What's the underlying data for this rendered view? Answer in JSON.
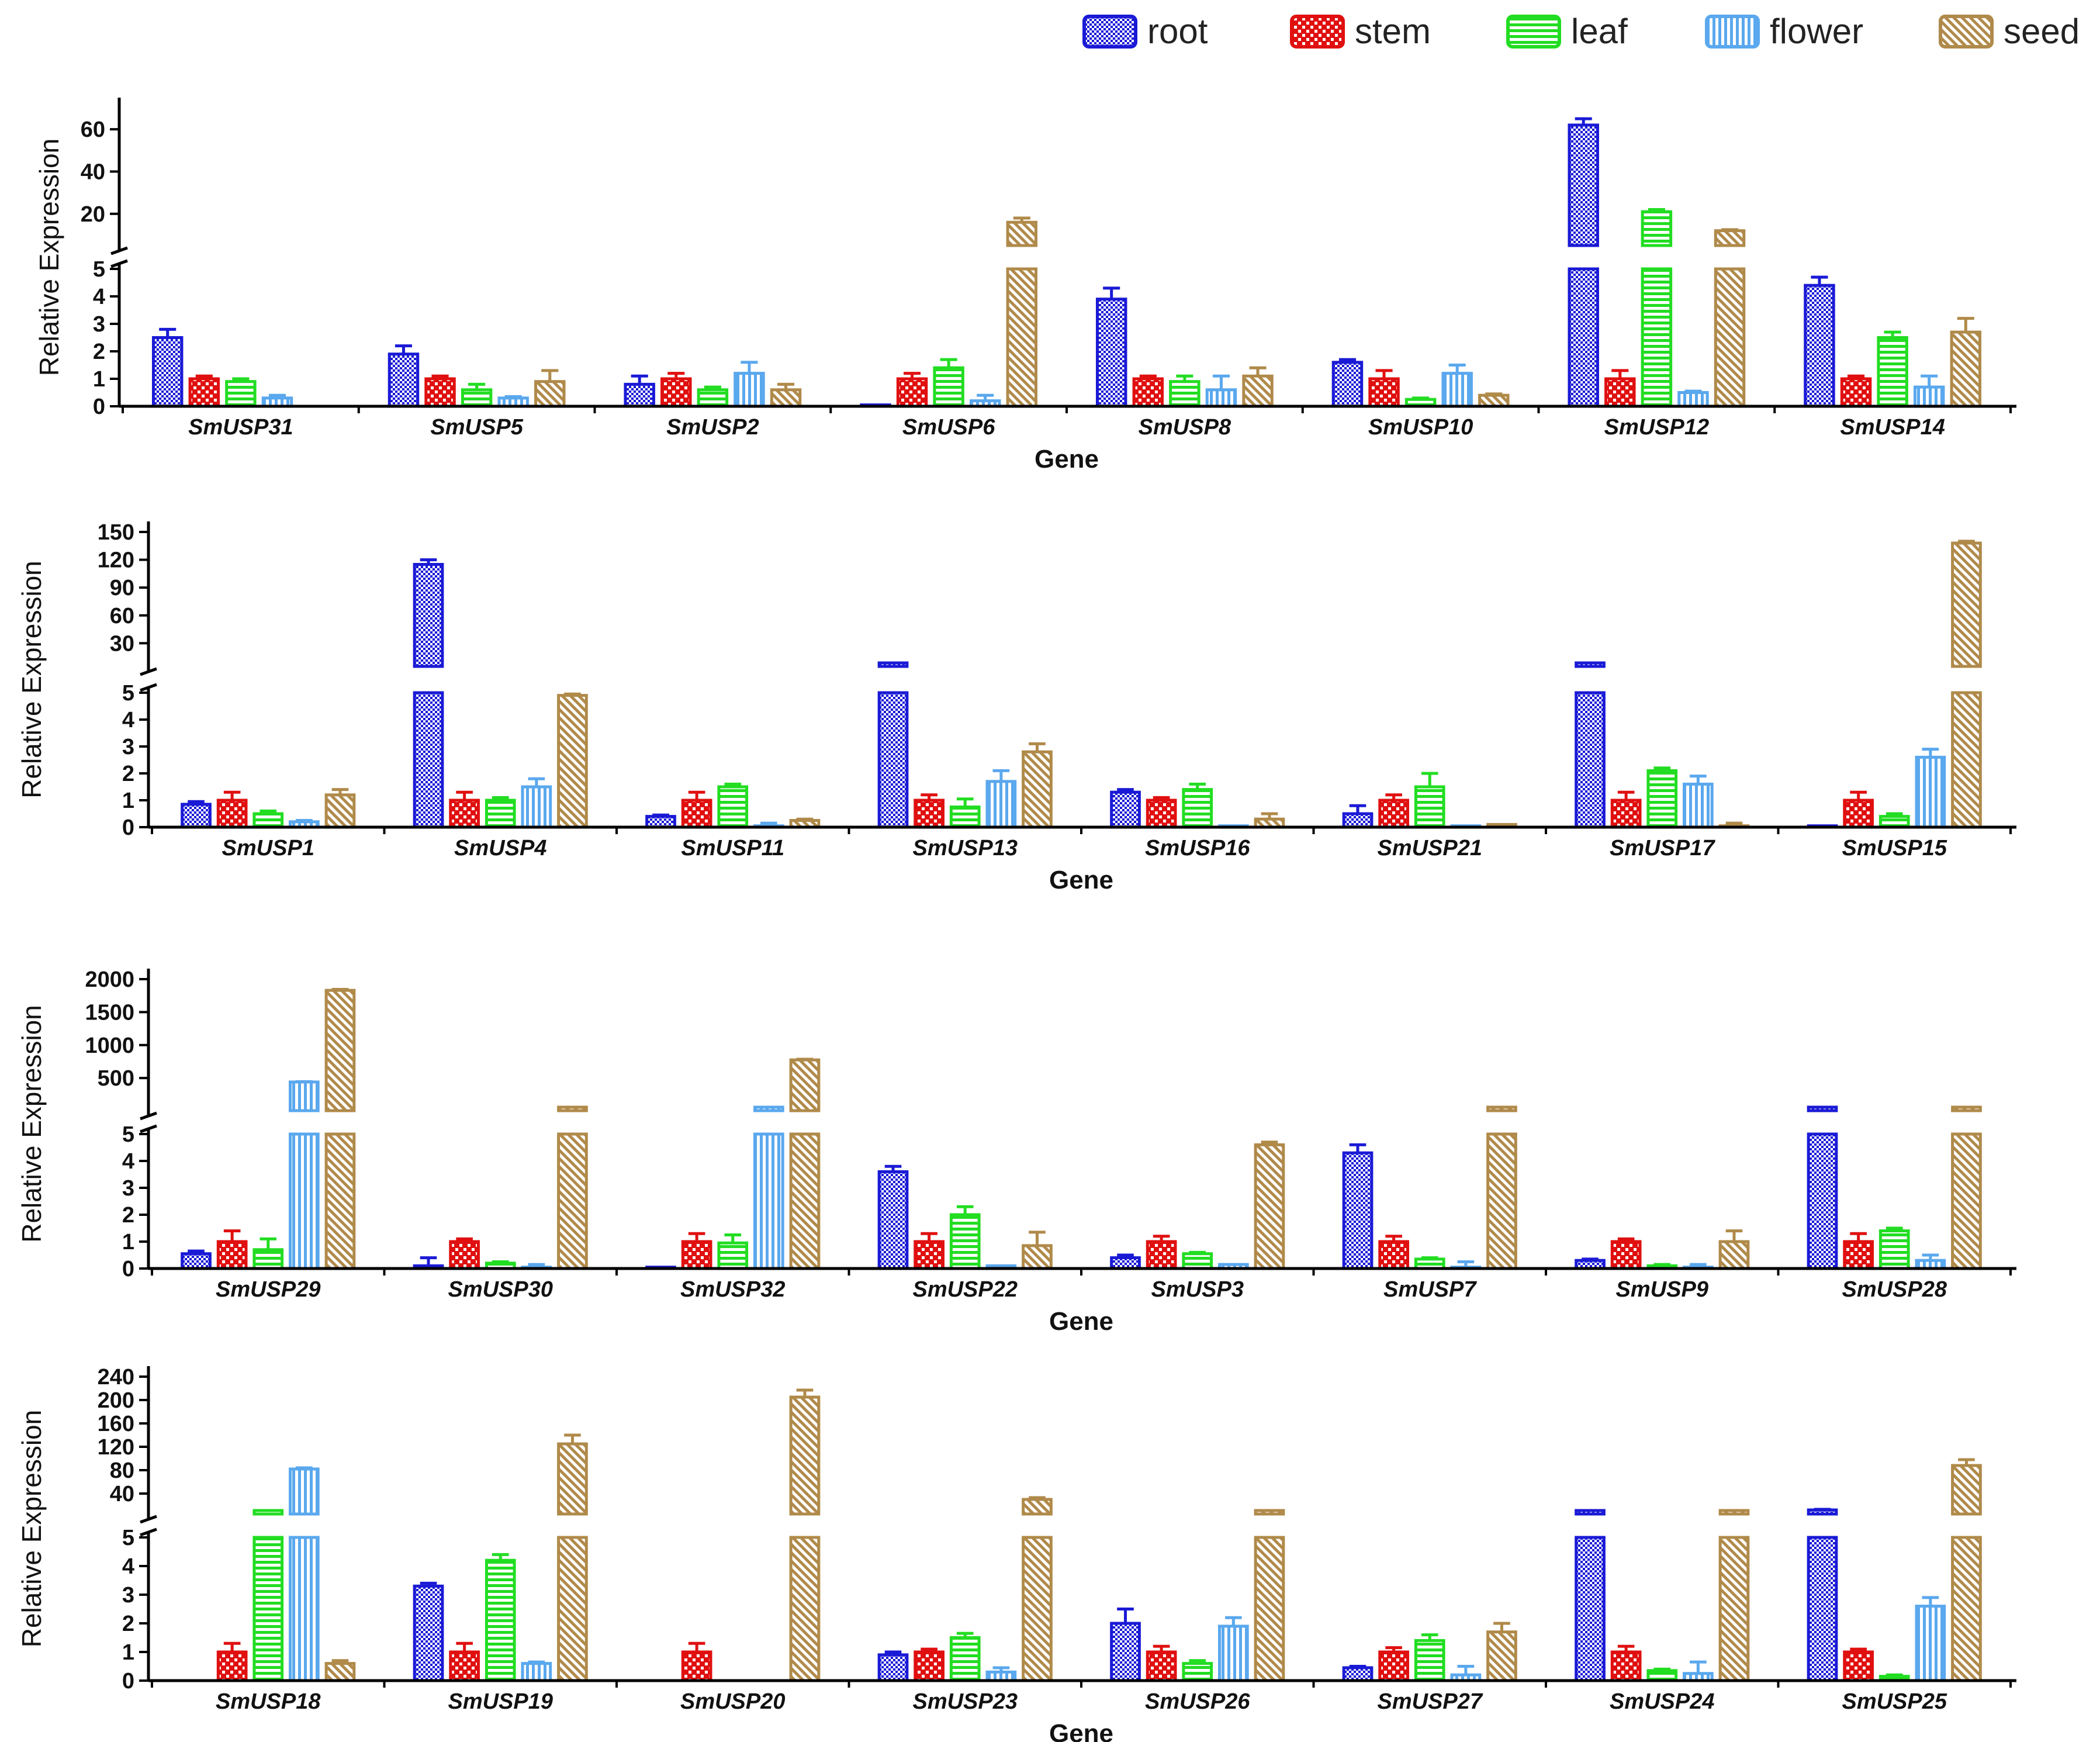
{
  "legend": [
    {
      "name": "root",
      "color": "#1a1ad6",
      "pattern": "checker"
    },
    {
      "name": "stem",
      "color": "#e01010",
      "pattern": "checker-large"
    },
    {
      "name": "leaf",
      "color": "#22dd22",
      "pattern": "hstripe"
    },
    {
      "name": "flower",
      "color": "#5aa8ee",
      "pattern": "vstripe"
    },
    {
      "name": "seed",
      "color": "#b08a4a",
      "pattern": "diag"
    }
  ],
  "chart_data": [
    {
      "type": "bar",
      "ylabel": "Relative Expression",
      "xlabel": "Gene",
      "lower_ylim": [
        0,
        5
      ],
      "lower_ticks": [
        0,
        1,
        2,
        3,
        4,
        5
      ],
      "upper_ylim": [
        5,
        70
      ],
      "upper_ticks": [
        20,
        40,
        60
      ],
      "categories": [
        "SmUSP31",
        "SmUSP5",
        "SmUSP2",
        "SmUSP6",
        "SmUSP8",
        "SmUSP10",
        "SmUSP12",
        "SmUSP14"
      ],
      "series": [
        {
          "name": "root",
          "values": [
            2.5,
            1.9,
            0.8,
            0.05,
            3.9,
            1.6,
            62,
            4.4
          ],
          "errors": [
            0.3,
            0.3,
            0.3,
            0,
            0.4,
            0.1,
            3,
            0.3
          ]
        },
        {
          "name": "stem",
          "values": [
            1.0,
            1.0,
            1.0,
            1.0,
            1.0,
            1.0,
            1.0,
            1.0
          ],
          "errors": [
            0.1,
            0.1,
            0.2,
            0.2,
            0.1,
            0.3,
            0.3,
            0.1
          ]
        },
        {
          "name": "leaf",
          "values": [
            0.9,
            0.6,
            0.6,
            1.4,
            0.9,
            0.25,
            21,
            2.5
          ],
          "errors": [
            0.1,
            0.2,
            0.1,
            0.3,
            0.2,
            0.05,
            1,
            0.2
          ]
        },
        {
          "name": "flower",
          "values": [
            0.3,
            0.3,
            1.2,
            0.2,
            0.6,
            1.2,
            0.5,
            0.7
          ],
          "errors": [
            0.1,
            0.05,
            0.4,
            0.2,
            0.5,
            0.3,
            0.05,
            0.4
          ]
        },
        {
          "name": "seed",
          "values": [
            0,
            0.9,
            0.6,
            16,
            1.1,
            0.4,
            12,
            2.7
          ],
          "errors": [
            0,
            0.4,
            0.2,
            2,
            0.3,
            0.05,
            0.5,
            0.5
          ]
        }
      ]
    },
    {
      "type": "bar",
      "ylabel": "Relative Expression",
      "xlabel": "Gene",
      "lower_ylim": [
        0,
        5
      ],
      "lower_ticks": [
        0,
        1,
        2,
        3,
        4,
        5
      ],
      "upper_ylim": [
        5,
        150
      ],
      "upper_ticks": [
        30,
        60,
        90,
        120,
        150
      ],
      "categories": [
        "SmUSP1",
        "SmUSP4",
        "SmUSP11",
        "SmUSP13",
        "SmUSP16",
        "SmUSP21",
        "SmUSP17",
        "SmUSP15"
      ],
      "series": [
        {
          "name": "root",
          "values": [
            0.85,
            115,
            0.4,
            8,
            1.3,
            0.5,
            8,
            0.05
          ],
          "errors": [
            0.1,
            5,
            0.05,
            0,
            0.1,
            0.3,
            0,
            0
          ]
        },
        {
          "name": "stem",
          "values": [
            1.0,
            1.0,
            1.0,
            1.0,
            1.0,
            1.0,
            1.0,
            1.0
          ],
          "errors": [
            0.3,
            0.3,
            0.3,
            0.2,
            0.1,
            0.2,
            0.3,
            0.3
          ]
        },
        {
          "name": "leaf",
          "values": [
            0.5,
            1.0,
            1.5,
            0.75,
            1.4,
            1.5,
            2.1,
            0.4
          ],
          "errors": [
            0.1,
            0.1,
            0.1,
            0.3,
            0.2,
            0.5,
            0.1,
            0.1
          ]
        },
        {
          "name": "flower",
          "values": [
            0.2,
            1.5,
            0.05,
            1.7,
            0.05,
            0.05,
            1.6,
            2.6
          ],
          "errors": [
            0.05,
            0.3,
            0.1,
            0.4,
            0,
            0,
            0.3,
            0.3
          ]
        },
        {
          "name": "seed",
          "values": [
            1.2,
            4.9,
            0.25,
            2.8,
            0.3,
            0.1,
            0.05,
            138
          ],
          "errors": [
            0.2,
            0.05,
            0.05,
            0.3,
            0.2,
            0,
            0.1,
            2
          ]
        }
      ]
    },
    {
      "type": "bar",
      "ylabel": "Relative Expression",
      "xlabel": "Gene",
      "lower_ylim": [
        0,
        5
      ],
      "lower_ticks": [
        0,
        1,
        2,
        3,
        4,
        5
      ],
      "upper_ylim": [
        5,
        2000
      ],
      "upper_ticks": [
        500,
        1000,
        1500,
        2000
      ],
      "categories": [
        "SmUSP29",
        "SmUSP30",
        "SmUSP32",
        "SmUSP22",
        "SmUSP3",
        "SmUSP7",
        "SmUSP9",
        "SmUSP28"
      ],
      "series": [
        {
          "name": "root",
          "values": [
            0.55,
            0.1,
            0.05,
            3.6,
            0.4,
            4.3,
            0.3,
            8
          ],
          "errors": [
            0.1,
            0.3,
            0,
            0.2,
            0.1,
            0.3,
            0.05,
            0
          ]
        },
        {
          "name": "stem",
          "values": [
            1.0,
            1.0,
            1.0,
            1.0,
            1.0,
            1.0,
            1.0,
            1.0
          ],
          "errors": [
            0.4,
            0.1,
            0.3,
            0.3,
            0.2,
            0.2,
            0.1,
            0.3
          ]
        },
        {
          "name": "leaf",
          "values": [
            0.7,
            0.2,
            0.95,
            2.0,
            0.55,
            0.35,
            0.1,
            1.4
          ],
          "errors": [
            0.4,
            0.05,
            0.3,
            0.3,
            0.05,
            0.05,
            0.05,
            0.1
          ]
        },
        {
          "name": "flower",
          "values": [
            440,
            0.05,
            8,
            0.1,
            0.15,
            0.05,
            0.05,
            0.3
          ],
          "errors": [
            5,
            0.1,
            0,
            0,
            0,
            0.2,
            0.1,
            0.2
          ]
        },
        {
          "name": "seed",
          "values": [
            1830,
            8,
            775,
            0.85,
            4.6,
            8,
            1.0,
            8
          ],
          "errors": [
            15,
            0,
            10,
            0.5,
            0.1,
            0,
            0.4,
            0
          ]
        }
      ]
    },
    {
      "type": "bar",
      "ylabel": "Relative Expression",
      "xlabel": "Gene",
      "lower_ylim": [
        0,
        5
      ],
      "lower_ticks": [
        0,
        1,
        2,
        3,
        4,
        5
      ],
      "upper_ylim": [
        5,
        240
      ],
      "upper_ticks": [
        40,
        80,
        120,
        160,
        200,
        240
      ],
      "categories": [
        "SmUSP18",
        "SmUSP19",
        "SmUSP20",
        "SmUSP23",
        "SmUSP26",
        "SmUSP27",
        "SmUSP24",
        "SmUSP25"
      ],
      "series": [
        {
          "name": "root",
          "values": [
            0,
            3.3,
            0,
            0.9,
            2.0,
            0.45,
            8,
            12
          ],
          "errors": [
            0,
            0.1,
            0,
            0.1,
            0.5,
            0.05,
            0,
            1
          ]
        },
        {
          "name": "stem",
          "values": [
            1.0,
            1.0,
            1.0,
            1.0,
            1.0,
            1.0,
            1.0,
            1.0
          ],
          "errors": [
            0.3,
            0.3,
            0.3,
            0.1,
            0.2,
            0.15,
            0.2,
            0.1
          ]
        },
        {
          "name": "leaf",
          "values": [
            8,
            4.2,
            0,
            1.5,
            0.6,
            1.4,
            0.35,
            0.15
          ],
          "errors": [
            0,
            0.2,
            0,
            0.15,
            0.1,
            0.2,
            0.05,
            0.05
          ]
        },
        {
          "name": "flower",
          "values": [
            82,
            0.6,
            0,
            0.3,
            1.9,
            0.2,
            0.25,
            2.6
          ],
          "errors": [
            2,
            0.05,
            0,
            0.15,
            0.3,
            0.3,
            0.4,
            0.3
          ]
        },
        {
          "name": "seed",
          "values": [
            0.6,
            125,
            205,
            30,
            8,
            1.7,
            8,
            88
          ],
          "errors": [
            0.1,
            15,
            12,
            3,
            0,
            0.3,
            0,
            10
          ]
        }
      ]
    }
  ]
}
